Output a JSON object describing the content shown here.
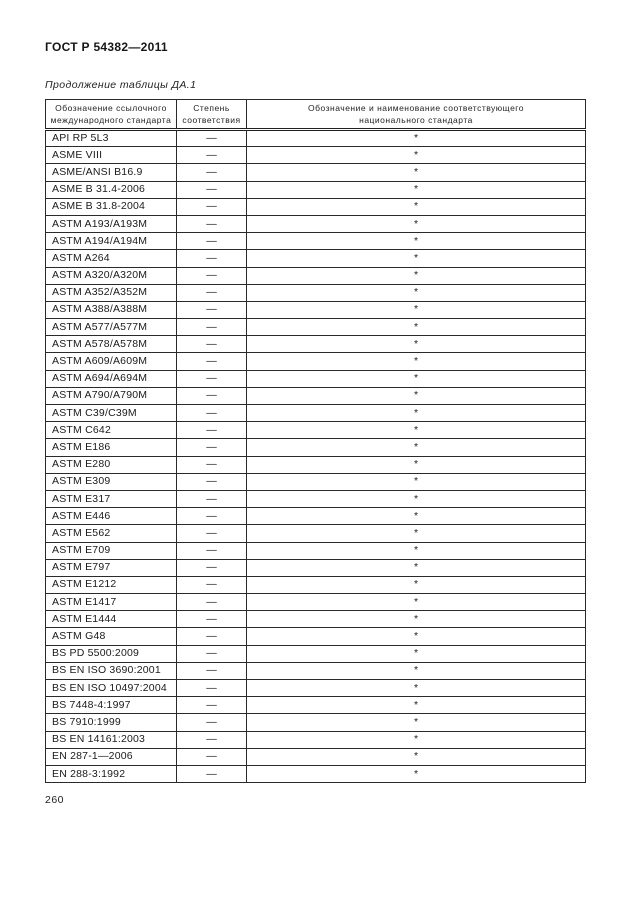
{
  "page": {
    "doc_code": "ГОСТ Р 54382—2011",
    "table_caption": "Продолжение таблицы ДА.1",
    "page_number": "260"
  },
  "table": {
    "headers": [
      "Обозначение ссылочного международного стандарта",
      "Степень соответствия",
      "Обозначение и наименование соответствующего национального стандарта"
    ],
    "rows": [
      [
        "API RP 5L3",
        "—",
        "*"
      ],
      [
        "ASME VIII",
        "—",
        "*"
      ],
      [
        "ASME/ANSI B16.9",
        "—",
        "*"
      ],
      [
        "ASME B 31.4-2006",
        "—",
        "*"
      ],
      [
        "ASME B 31.8-2004",
        "—",
        "*"
      ],
      [
        "ASTM A193/A193M",
        "—",
        "*"
      ],
      [
        "ASTM A194/A194M",
        "—",
        "*"
      ],
      [
        "ASTM A264",
        "—",
        "*"
      ],
      [
        "ASTM A320/A320M",
        "—",
        "*"
      ],
      [
        "ASTM A352/A352M",
        "—",
        "*"
      ],
      [
        "ASTM A388/A388M",
        "—",
        "*"
      ],
      [
        "ASTM A577/A577M",
        "—",
        "*"
      ],
      [
        "ASTM A578/A578M",
        "—",
        "*"
      ],
      [
        "ASTM A609/A609M",
        "—",
        "*"
      ],
      [
        "ASTM A694/A694M",
        "—",
        "*"
      ],
      [
        "ASTM A790/A790M",
        "—",
        "*"
      ],
      [
        "ASTM C39/C39M",
        "—",
        "*"
      ],
      [
        "ASTM C642",
        "—",
        "*"
      ],
      [
        "ASTM E186",
        "—",
        "*"
      ],
      [
        "ASTM E280",
        "—",
        "*"
      ],
      [
        "ASTM E309",
        "—",
        "*"
      ],
      [
        "ASTM E317",
        "—",
        "*"
      ],
      [
        "ASTM E446",
        "—",
        "*"
      ],
      [
        "ASTM E562",
        "—",
        "*"
      ],
      [
        "ASTM E709",
        "—",
        "*"
      ],
      [
        "ASTM E797",
        "—",
        "*"
      ],
      [
        "ASTM E1212",
        "—",
        "*"
      ],
      [
        "ASTM E1417",
        "—",
        "*"
      ],
      [
        "ASTM E1444",
        "—",
        "*"
      ],
      [
        "ASTM G48",
        "—",
        "*"
      ],
      [
        "BS PD 5500:2009",
        "—",
        "*"
      ],
      [
        "BS EN ISO 3690:2001",
        "—",
        "*"
      ],
      [
        "BS EN ISO 10497:2004",
        "—",
        "*"
      ],
      [
        "BS 7448-4:1997",
        "—",
        "*"
      ],
      [
        "BS 7910:1999",
        "—",
        "*"
      ],
      [
        "BS EN 14161:2003",
        "—",
        "*"
      ],
      [
        "EN 287-1—2006",
        "—",
        "*"
      ],
      [
        "EN 288-3:1992",
        "—",
        "*"
      ]
    ]
  }
}
